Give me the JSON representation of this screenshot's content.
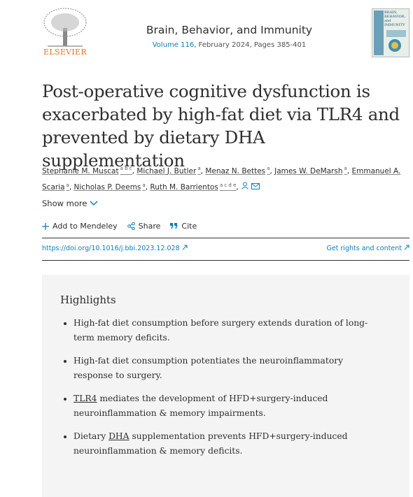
{
  "header": {
    "publisher": "ELSEVIER",
    "journal": "Brain, Behavior, and Immunity",
    "volume": "Volume 116",
    "issue_info": ", February 2024, Pages 385-401",
    "cover_title": "BRAIN, BEHAVIOR, and IMMUNITY"
  },
  "article": {
    "title": "Post-operative cognitive dysfunction is exacerbated by high-fat diet via TLR4 and prevented by dietary DHA supplementation",
    "authors": [
      {
        "name": "Stephanie M. Muscat",
        "aff": "a b c"
      },
      {
        "name": "Michael J. Butler",
        "aff": "a"
      },
      {
        "name": "Menaz N. Bettes",
        "aff": "a"
      },
      {
        "name": "James W. DeMarsh",
        "aff": "a"
      },
      {
        "name": "Emmanuel A. Scaria",
        "aff": "a"
      },
      {
        "name": "Nicholas P. Deems",
        "aff": "a"
      },
      {
        "name": "Ruth M. Barrientos",
        "aff": "a c d e"
      }
    ],
    "show_more": "Show more",
    "actions": [
      "Add to Mendeley",
      "Share",
      "Cite"
    ],
    "doi": "https://doi.org/10.1016/j.bbi.2023.12.028",
    "rights": "Get rights and content"
  },
  "highlights": {
    "heading": "Highlights",
    "items": [
      [
        "High-fat diet consumption before surgery extends duration of long-term memory deficits."
      ],
      [
        "High-fat diet consumption potentiates the neuroinflammatory response to surgery."
      ],
      [
        "TLR4",
        " mediates the development of HFD+surgery-induced neuroinflammation & memory impairments."
      ],
      [
        "Dietary ",
        "DHA",
        " supplementation prevents HFD+surgery-induced neuroinflammation & memory deficits."
      ]
    ]
  }
}
